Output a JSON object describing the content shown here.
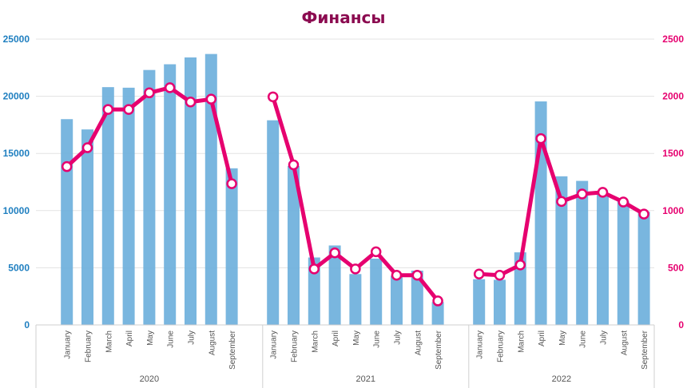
{
  "chart_data": {
    "type": "bar+line",
    "title": "Финансы",
    "groups": [
      {
        "label": "2020",
        "categories": [
          "",
          "January",
          "February",
          "March",
          "April",
          "May",
          "June",
          "July",
          "August",
          "September",
          ""
        ]
      },
      {
        "label": "2021",
        "categories": [
          "January",
          "February",
          "March",
          "April",
          "May",
          "June",
          "July",
          "August",
          "September",
          ""
        ]
      },
      {
        "label": "2022",
        "categories": [
          "January",
          "February",
          "March",
          "April",
          "May",
          "June",
          "July",
          "August",
          "September"
        ]
      }
    ],
    "series": [
      {
        "name": "bars",
        "type": "bar",
        "axis": "left",
        "color": "#6aaedb",
        "values": [
          null,
          18000,
          17100,
          20800,
          20750,
          22300,
          22800,
          23400,
          23700,
          13700,
          null,
          17900,
          13900,
          5900,
          6950,
          4450,
          5800,
          4300,
          4750,
          2000,
          null,
          4000,
          3950,
          6350,
          19550,
          13000,
          12600,
          11400,
          10800,
          9900
        ]
      },
      {
        "name": "line",
        "type": "line",
        "axis": "right",
        "color": "#e6006f",
        "values": [
          null,
          1385,
          1550,
          1885,
          1885,
          2030,
          2075,
          1950,
          1975,
          1235,
          null,
          1995,
          1400,
          490,
          630,
          490,
          640,
          435,
          435,
          210,
          null,
          445,
          435,
          525,
          1630,
          1080,
          1145,
          1160,
          1075,
          970
        ]
      }
    ],
    "left_axis": {
      "ylim": [
        0,
        25000
      ],
      "ticks": [
        "0",
        "5000",
        "10000",
        "15000",
        "20000",
        "25000"
      ]
    },
    "right_axis": {
      "ylim": [
        0,
        2500
      ],
      "ticks": [
        "0",
        "500",
        "1000",
        "1500",
        "2000",
        "2500"
      ]
    },
    "grid": true,
    "legend": "none"
  }
}
